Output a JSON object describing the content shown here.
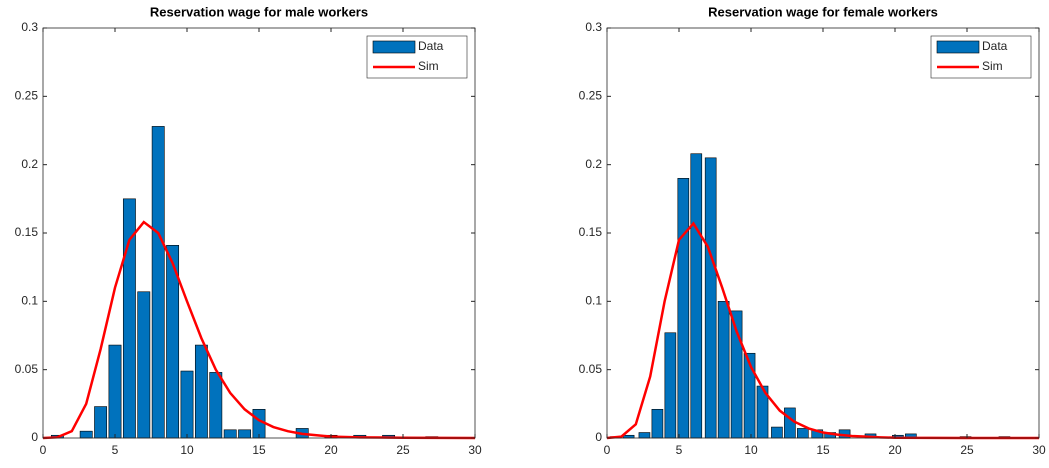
{
  "chart_data": [
    {
      "type": "bar",
      "title": "Reservation wage for male workers",
      "xlim": [
        0,
        30
      ],
      "xticks": [
        0,
        5,
        10,
        15,
        20,
        25,
        30
      ],
      "ylim": [
        0,
        0.3
      ],
      "yticks": [
        0,
        0.05,
        0.1,
        0.15,
        0.2,
        0.25,
        0.3
      ],
      "legend": "top-right",
      "series": [
        {
          "name": "Data",
          "type": "bar",
          "color": "#0072bd",
          "x": [
            1,
            3,
            4,
            5,
            6,
            7,
            8,
            9,
            10,
            11,
            12,
            13,
            14,
            15,
            18,
            20,
            22,
            24,
            27
          ],
          "values": [
            0.002,
            0.005,
            0.023,
            0.068,
            0.175,
            0.107,
            0.228,
            0.141,
            0.049,
            0.068,
            0.048,
            0.006,
            0.006,
            0.021,
            0.007,
            0.002,
            0.002,
            0.002,
            0.001
          ]
        },
        {
          "name": "Sim",
          "type": "line",
          "color": "#ff0000",
          "x": [
            0,
            1,
            2,
            3,
            4,
            5,
            6,
            7,
            8,
            9,
            10,
            11,
            12,
            13,
            14,
            15,
            16,
            17,
            18,
            19,
            20,
            22,
            25,
            30
          ],
          "values": [
            0,
            0.0005,
            0.005,
            0.025,
            0.065,
            0.11,
            0.145,
            0.158,
            0.15,
            0.128,
            0.1,
            0.073,
            0.05,
            0.033,
            0.021,
            0.013,
            0.008,
            0.005,
            0.003,
            0.002,
            0.001,
            0.0005,
            0.0002,
            0
          ]
        }
      ]
    },
    {
      "type": "bar",
      "title": "Reservation wage for female workers",
      "xlim": [
        0,
        30
      ],
      "xticks": [
        0,
        5,
        10,
        15,
        20,
        25,
        30
      ],
      "ylim": [
        0,
        0.3
      ],
      "yticks": [
        0,
        0.05,
        0.1,
        0.15,
        0.2,
        0.25,
        0.3
      ],
      "legend": "top-right",
      "series": [
        {
          "name": "Data",
          "type": "bar",
          "color": "#0072bd",
          "x": [
            0.6,
            1.5,
            2.6,
            3.5,
            4.4,
            5.3,
            6.2,
            7.2,
            8.1,
            9,
            9.9,
            10.8,
            11.8,
            12.7,
            13.6,
            14.6,
            15.5,
            16.5,
            18.3,
            20.2,
            21.1,
            24.9,
            27.6
          ],
          "values": [
            0.001,
            0.002,
            0.004,
            0.021,
            0.077,
            0.19,
            0.208,
            0.205,
            0.1,
            0.093,
            0.062,
            0.038,
            0.008,
            0.022,
            0.007,
            0.006,
            0.004,
            0.006,
            0.003,
            0.002,
            0.003,
            0.001,
            0.001
          ]
        },
        {
          "name": "Sim",
          "type": "line",
          "color": "#ff0000",
          "x": [
            0,
            1,
            2,
            3,
            4,
            5,
            6,
            7,
            8,
            9,
            10,
            11,
            12,
            13,
            14,
            15,
            16,
            17,
            18,
            19,
            20,
            25,
            30
          ],
          "values": [
            0,
            0.001,
            0.01,
            0.045,
            0.1,
            0.145,
            0.157,
            0.14,
            0.11,
            0.078,
            0.052,
            0.033,
            0.02,
            0.012,
            0.007,
            0.004,
            0.0025,
            0.0015,
            0.001,
            0.0005,
            0.0002,
            0,
            0
          ]
        }
      ]
    }
  ]
}
